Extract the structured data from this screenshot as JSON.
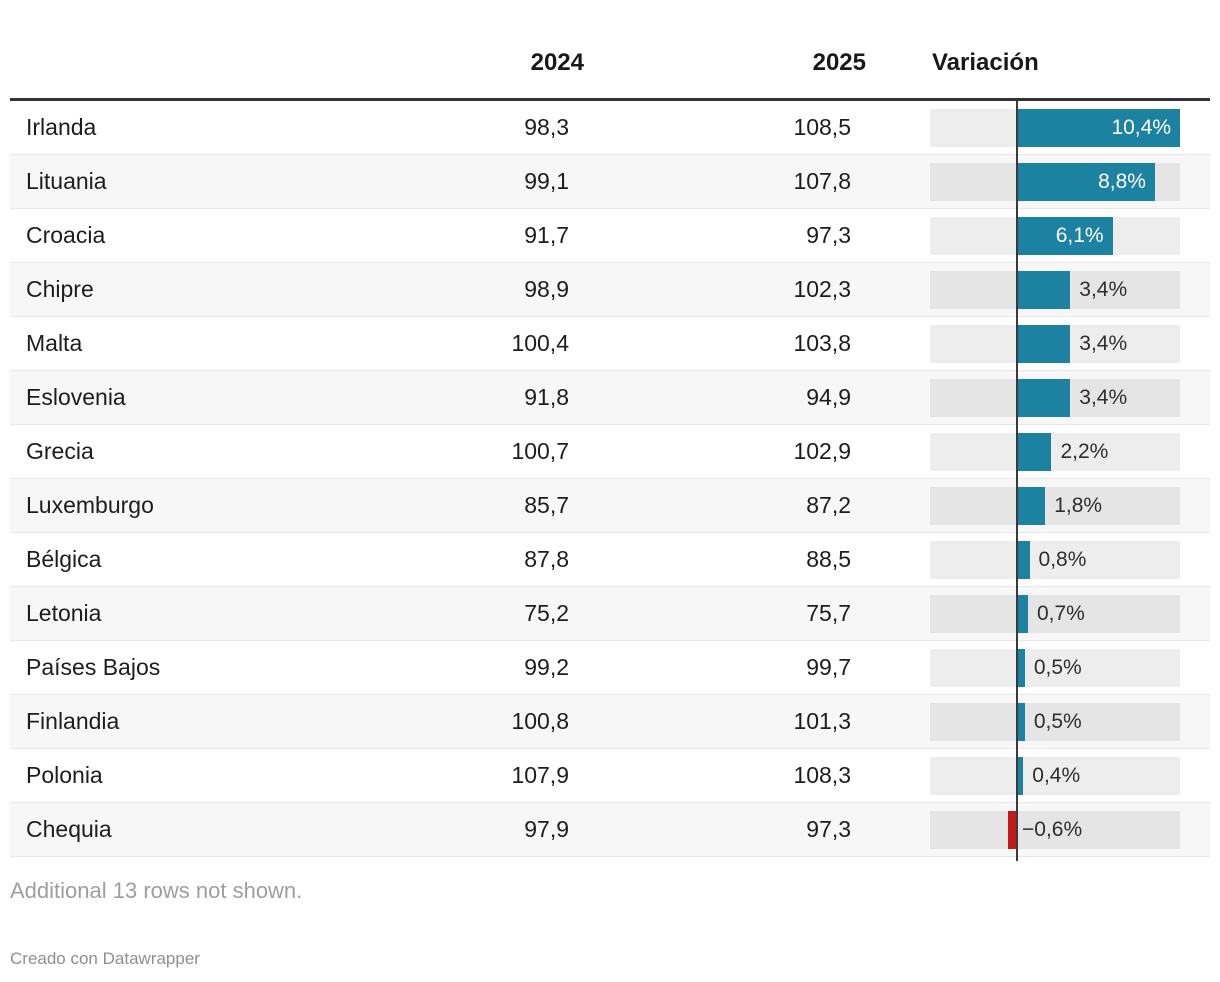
{
  "header": {
    "country": "",
    "col_2024": "2024",
    "col_2025": "2025",
    "col_variation": "Variación"
  },
  "rows": [
    {
      "country": "Irlanda",
      "y2024": "98,3",
      "y2025": "108,5",
      "variation": 10.4,
      "variation_label": "10,4%"
    },
    {
      "country": "Lituania",
      "y2024": "99,1",
      "y2025": "107,8",
      "variation": 8.8,
      "variation_label": "8,8%"
    },
    {
      "country": "Croacia",
      "y2024": "91,7",
      "y2025": "97,3",
      "variation": 6.1,
      "variation_label": "6,1%"
    },
    {
      "country": "Chipre",
      "y2024": "98,9",
      "y2025": "102,3",
      "variation": 3.4,
      "variation_label": "3,4%"
    },
    {
      "country": "Malta",
      "y2024": "100,4",
      "y2025": "103,8",
      "variation": 3.4,
      "variation_label": "3,4%"
    },
    {
      "country": "Eslovenia",
      "y2024": "91,8",
      "y2025": "94,9",
      "variation": 3.4,
      "variation_label": "3,4%"
    },
    {
      "country": "Grecia",
      "y2024": "100,7",
      "y2025": "102,9",
      "variation": 2.2,
      "variation_label": "2,2%"
    },
    {
      "country": "Luxemburgo",
      "y2024": "85,7",
      "y2025": "87,2",
      "variation": 1.8,
      "variation_label": "1,8%"
    },
    {
      "country": "Bélgica",
      "y2024": "87,8",
      "y2025": "88,5",
      "variation": 0.8,
      "variation_label": "0,8%"
    },
    {
      "country": "Letonia",
      "y2024": "75,2",
      "y2025": "75,7",
      "variation": 0.7,
      "variation_label": "0,7%"
    },
    {
      "country": "Países Bajos",
      "y2024": "99,2",
      "y2025": "99,7",
      "variation": 0.5,
      "variation_label": "0,5%"
    },
    {
      "country": "Finlandia",
      "y2024": "100,8",
      "y2025": "101,3",
      "variation": 0.5,
      "variation_label": "0,5%"
    },
    {
      "country": "Polonia",
      "y2024": "107,9",
      "y2025": "108,3",
      "variation": 0.4,
      "variation_label": "0,4%"
    },
    {
      "country": "Chequia",
      "y2024": "97,9",
      "y2025": "97,3",
      "variation": -0.6,
      "variation_label": "−0,6%"
    }
  ],
  "footer": {
    "note": "Additional 13 rows not shown.",
    "attribution": "Creado con Datawrapper"
  },
  "colors": {
    "positive_bar": "#1d81a2",
    "negative_bar": "#c2191d",
    "zero_line": "#3a3a3a",
    "bar_track": "rgba(0,0,0,0.07)",
    "alt_row_bg": "#f7f7f7"
  },
  "chart_data": {
    "type": "table",
    "title": "",
    "columns": [
      "",
      "2024",
      "2025",
      "Variación"
    ],
    "categories": [
      "Irlanda",
      "Lituania",
      "Croacia",
      "Chipre",
      "Malta",
      "Eslovenia",
      "Grecia",
      "Luxemburgo",
      "Bélgica",
      "Letonia",
      "Países Bajos",
      "Finlandia",
      "Polonia",
      "Chequia"
    ],
    "series": [
      {
        "name": "2024",
        "values": [
          98.3,
          99.1,
          91.7,
          98.9,
          100.4,
          91.8,
          100.7,
          85.7,
          87.8,
          75.2,
          99.2,
          100.8,
          107.9,
          97.9
        ]
      },
      {
        "name": "2025",
        "values": [
          108.5,
          107.8,
          97.3,
          102.3,
          103.8,
          94.9,
          102.9,
          87.2,
          88.5,
          75.7,
          99.7,
          101.3,
          108.3,
          97.3
        ]
      },
      {
        "name": "Variación (%)",
        "values": [
          10.4,
          8.8,
          6.1,
          3.4,
          3.4,
          3.4,
          2.2,
          1.8,
          0.8,
          0.7,
          0.5,
          0.5,
          0.4,
          -0.6
        ]
      }
    ],
    "embedded_bar_chart": {
      "type": "bar",
      "orientation": "horizontal",
      "axis_range_pct": [
        -5.6,
        10.4
      ],
      "positive_color": "#1d81a2",
      "negative_color": "#c2191d",
      "grid": false,
      "legend": false
    },
    "note": "Additional 13 rows not shown.",
    "attribution": "Creado con Datawrapper"
  }
}
